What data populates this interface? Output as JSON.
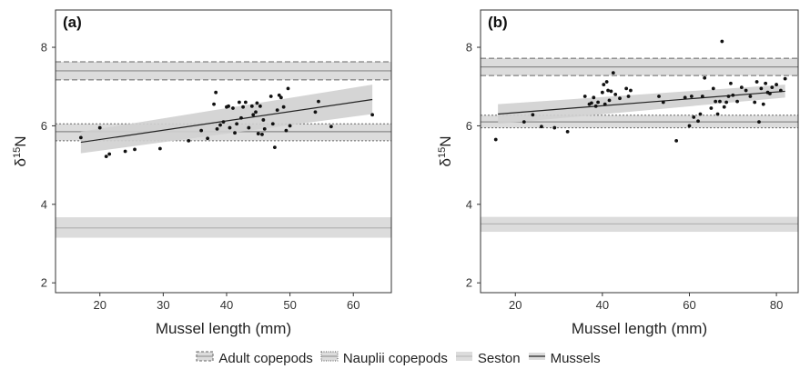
{
  "chart_data": [
    {
      "type": "scatter",
      "panel_label": "(a)",
      "xlabel": "Mussel length (mm)",
      "ylabel_base": "δ",
      "ylabel_sup": "15",
      "ylabel_suffix": "N",
      "xlim": [
        13,
        66
      ],
      "ylim": [
        1.75,
        8.95
      ],
      "xticks": [
        20,
        30,
        40,
        50,
        60
      ],
      "yticks": [
        2,
        4,
        6,
        8
      ],
      "bands": [
        {
          "name": "Adult copepods",
          "mean": 7.4,
          "lower": 7.17,
          "upper": 7.63,
          "border": "dashed"
        },
        {
          "name": "Nauplii copepods",
          "mean": 5.85,
          "lower": 5.62,
          "upper": 6.05,
          "border": "dotted"
        },
        {
          "name": "Seston",
          "mean": 3.4,
          "lower": 3.15,
          "upper": 3.67,
          "border": "none"
        }
      ],
      "regression": {
        "x": [
          17,
          63
        ],
        "y": [
          5.58,
          6.67
        ],
        "ci_lower": [
          5.3,
          6.3
        ],
        "ci_upper": [
          5.85,
          7.05
        ]
      },
      "points": [
        [
          17,
          5.7
        ],
        [
          20,
          5.95
        ],
        [
          21,
          5.22
        ],
        [
          21.5,
          5.28
        ],
        [
          24,
          5.35
        ],
        [
          25.5,
          5.4
        ],
        [
          29.5,
          5.42
        ],
        [
          34,
          5.62
        ],
        [
          36,
          5.88
        ],
        [
          37,
          5.68
        ],
        [
          38,
          6.55
        ],
        [
          38.3,
          6.85
        ],
        [
          38.5,
          5.92
        ],
        [
          39,
          6.02
        ],
        [
          39.5,
          6.1
        ],
        [
          40,
          6.48
        ],
        [
          40.3,
          6.5
        ],
        [
          40.5,
          5.95
        ],
        [
          41,
          6.45
        ],
        [
          41.3,
          5.82
        ],
        [
          41.6,
          6.05
        ],
        [
          42,
          6.6
        ],
        [
          42.3,
          6.2
        ],
        [
          42.6,
          6.48
        ],
        [
          43,
          6.6
        ],
        [
          43.5,
          5.95
        ],
        [
          44,
          6.5
        ],
        [
          44.2,
          6.28
        ],
        [
          44.6,
          6.35
        ],
        [
          44.8,
          6.58
        ],
        [
          45,
          5.8
        ],
        [
          45.3,
          6.5
        ],
        [
          45.6,
          5.78
        ],
        [
          45.8,
          6.15
        ],
        [
          46,
          5.92
        ],
        [
          47,
          6.75
        ],
        [
          47.3,
          6.05
        ],
        [
          47.6,
          5.45
        ],
        [
          48,
          6.4
        ],
        [
          48.3,
          6.78
        ],
        [
          48.6,
          6.72
        ],
        [
          49,
          6.48
        ],
        [
          49.4,
          5.88
        ],
        [
          49.7,
          6.95
        ],
        [
          50,
          6.0
        ],
        [
          54,
          6.35
        ],
        [
          54.5,
          6.62
        ],
        [
          56.5,
          5.98
        ],
        [
          63,
          6.28
        ]
      ]
    },
    {
      "type": "scatter",
      "panel_label": "(b)",
      "xlabel": "Mussel length (mm)",
      "ylabel_base": "δ",
      "ylabel_sup": "15",
      "ylabel_suffix": "N",
      "xlim": [
        12,
        85
      ],
      "ylim": [
        1.75,
        8.95
      ],
      "xticks": [
        20,
        40,
        60,
        80
      ],
      "yticks": [
        2,
        4,
        6,
        8
      ],
      "bands": [
        {
          "name": "Adult copepods",
          "mean": 7.5,
          "lower": 7.28,
          "upper": 7.72,
          "border": "dashed"
        },
        {
          "name": "Nauplii copepods",
          "mean": 6.1,
          "lower": 5.95,
          "upper": 6.27,
          "border": "dotted"
        },
        {
          "name": "Seston",
          "mean": 3.5,
          "lower": 3.3,
          "upper": 3.68,
          "border": "none"
        }
      ],
      "regression": {
        "x": [
          16,
          82
        ],
        "y": [
          6.3,
          6.88
        ],
        "ci_lower": [
          6.05,
          6.72
        ],
        "ci_upper": [
          6.55,
          7.05
        ]
      },
      "points": [
        [
          15.5,
          5.65
        ],
        [
          22,
          6.1
        ],
        [
          24,
          6.28
        ],
        [
          26,
          5.98
        ],
        [
          29,
          5.95
        ],
        [
          32,
          5.85
        ],
        [
          36,
          6.75
        ],
        [
          37,
          6.55
        ],
        [
          37.5,
          6.58
        ],
        [
          38,
          6.72
        ],
        [
          38.5,
          6.5
        ],
        [
          39,
          6.6
        ],
        [
          40,
          6.85
        ],
        [
          40.3,
          7.05
        ],
        [
          40.6,
          6.55
        ],
        [
          41,
          7.12
        ],
        [
          41.3,
          6.9
        ],
        [
          41.6,
          6.65
        ],
        [
          42,
          6.88
        ],
        [
          42.5,
          7.35
        ],
        [
          43,
          6.8
        ],
        [
          44,
          6.7
        ],
        [
          45.5,
          6.95
        ],
        [
          46,
          6.75
        ],
        [
          46.5,
          6.9
        ],
        [
          53,
          6.75
        ],
        [
          54,
          6.6
        ],
        [
          57,
          5.62
        ],
        [
          59,
          6.72
        ],
        [
          60,
          6.0
        ],
        [
          60.5,
          6.75
        ],
        [
          61,
          6.22
        ],
        [
          62,
          6.12
        ],
        [
          62.5,
          6.3
        ],
        [
          63,
          6.75
        ],
        [
          63.5,
          7.22
        ],
        [
          65,
          6.45
        ],
        [
          65.5,
          6.95
        ],
        [
          66,
          6.62
        ],
        [
          66.5,
          6.3
        ],
        [
          67,
          6.62
        ],
        [
          67.5,
          8.15
        ],
        [
          68,
          6.48
        ],
        [
          68.5,
          6.6
        ],
        [
          69,
          6.75
        ],
        [
          69.5,
          7.08
        ],
        [
          70,
          6.78
        ],
        [
          71,
          6.62
        ],
        [
          72,
          6.98
        ],
        [
          73,
          6.9
        ],
        [
          74,
          6.75
        ],
        [
          75,
          6.6
        ],
        [
          75.5,
          7.12
        ],
        [
          76,
          6.1
        ],
        [
          76.5,
          6.95
        ],
        [
          77,
          6.55
        ],
        [
          77.5,
          7.08
        ],
        [
          78,
          6.85
        ],
        [
          78.5,
          6.82
        ],
        [
          79,
          6.98
        ],
        [
          80,
          7.05
        ],
        [
          81,
          6.9
        ],
        [
          82,
          7.2
        ]
      ]
    }
  ],
  "legend": [
    {
      "label": "Adult copepods",
      "style": "dashed-band"
    },
    {
      "label": "Nauplii copepods",
      "style": "dotted-band"
    },
    {
      "label": "Seston",
      "style": "band"
    },
    {
      "label": "Mussels",
      "style": "line-band"
    }
  ],
  "colors": {
    "band_fill": "#dcdcdc",
    "ci_fill": "#d0d0d0",
    "band_mean": "#8a8a8a",
    "band_border": "#666666",
    "regression": "#222222",
    "points": "#111111",
    "panel_border": "#333333"
  }
}
